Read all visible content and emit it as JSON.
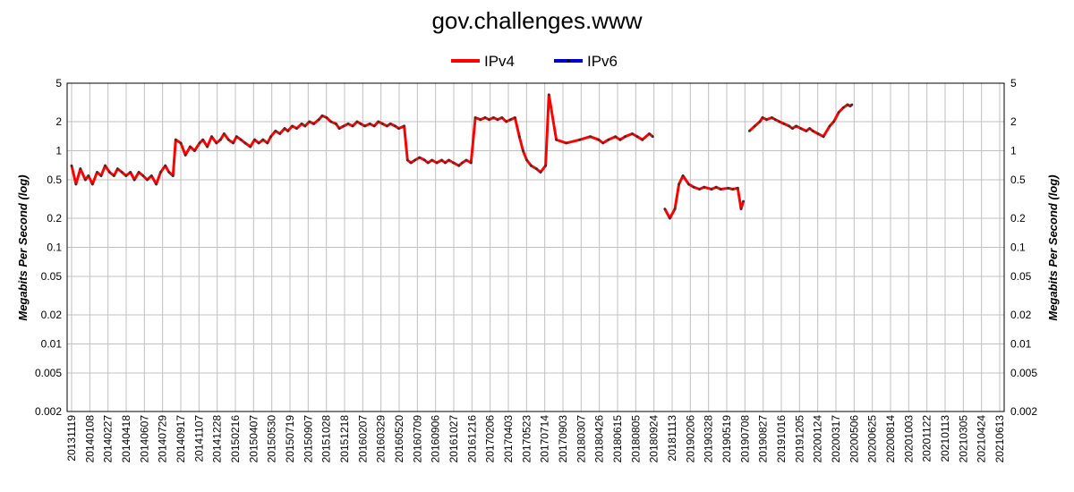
{
  "chart_data": {
    "type": "line",
    "title": "gov.challenges.www",
    "ylabel": "Megabits Per Second (log)",
    "y_scale": "log",
    "ylim": [
      0.002,
      5
    ],
    "y_ticks": [
      "5",
      "2",
      "1",
      "0.5",
      "0.2",
      "0.1",
      "0.05",
      "0.02",
      "0.01",
      "0.005",
      "0.002"
    ],
    "x_ticks": [
      "20131119",
      "20140108",
      "20140227",
      "20140418",
      "20140607",
      "20140729",
      "20140917",
      "20141107",
      "20141228",
      "20150216",
      "20150407",
      "20150530",
      "20150719",
      "20150907",
      "20151028",
      "20151218",
      "20160207",
      "20160329",
      "20160520",
      "20160709",
      "20160906",
      "20161027",
      "20161216",
      "20170206",
      "20170403",
      "20170523",
      "20170714",
      "20170903",
      "20180307",
      "20180426",
      "20180615",
      "20180805",
      "20180924",
      "20181113",
      "20190206",
      "20190328",
      "20190519",
      "20190708",
      "20190827",
      "20191016",
      "20191205",
      "20200124",
      "20200317",
      "20200506",
      "20200625",
      "20200814",
      "20201003",
      "20201122",
      "20210113",
      "20210305",
      "20210424",
      "20210613"
    ],
    "grid": true,
    "legend_position": "top-center",
    "series": [
      {
        "name": "IPv4",
        "color": "#ff0000",
        "points": [
          [
            "20131119",
            0.7
          ],
          [
            "20131202",
            0.45
          ],
          [
            "20131215",
            0.65
          ],
          [
            "20131230",
            0.5
          ],
          [
            "20140108",
            0.55
          ],
          [
            "20140120",
            0.45
          ],
          [
            "20140203",
            0.6
          ],
          [
            "20140215",
            0.55
          ],
          [
            "20140227",
            0.7
          ],
          [
            "20140312",
            0.6
          ],
          [
            "20140325",
            0.55
          ],
          [
            "20140405",
            0.65
          ],
          [
            "20140418",
            0.6
          ],
          [
            "20140430",
            0.55
          ],
          [
            "20140513",
            0.6
          ],
          [
            "20140525",
            0.5
          ],
          [
            "20140607",
            0.6
          ],
          [
            "20140620",
            0.55
          ],
          [
            "20140702",
            0.5
          ],
          [
            "20140715",
            0.55
          ],
          [
            "20140729",
            0.45
          ],
          [
            "20140811",
            0.6
          ],
          [
            "20140825",
            0.7
          ],
          [
            "20140905",
            0.6
          ],
          [
            "20140917",
            0.55
          ],
          [
            "20140925",
            1.3
          ],
          [
            "20141010",
            1.2
          ],
          [
            "20141024",
            0.9
          ],
          [
            "20141107",
            1.1
          ],
          [
            "20141120",
            1.0
          ],
          [
            "20141205",
            1.2
          ],
          [
            "20141215",
            1.3
          ],
          [
            "20141228",
            1.1
          ],
          [
            "20150110",
            1.4
          ],
          [
            "20150124",
            1.2
          ],
          [
            "20150205",
            1.3
          ],
          [
            "20150216",
            1.5
          ],
          [
            "20150301",
            1.3
          ],
          [
            "20150315",
            1.2
          ],
          [
            "20150325",
            1.4
          ],
          [
            "20150407",
            1.3
          ],
          [
            "20150420",
            1.2
          ],
          [
            "20150505",
            1.1
          ],
          [
            "20150518",
            1.3
          ],
          [
            "20150530",
            1.2
          ],
          [
            "20150612",
            1.3
          ],
          [
            "20150625",
            1.2
          ],
          [
            "20150705",
            1.4
          ],
          [
            "20150719",
            1.6
          ],
          [
            "20150801",
            1.5
          ],
          [
            "20150815",
            1.7
          ],
          [
            "20150825",
            1.6
          ],
          [
            "20150907",
            1.8
          ],
          [
            "20150920",
            1.7
          ],
          [
            "20151005",
            1.9
          ],
          [
            "20151015",
            1.8
          ],
          [
            "20151028",
            2.0
          ],
          [
            "20151110",
            1.9
          ],
          [
            "20151125",
            2.1
          ],
          [
            "20151205",
            2.3
          ],
          [
            "20151218",
            2.2
          ],
          [
            "20151231",
            2.0
          ],
          [
            "20160115",
            1.9
          ],
          [
            "20160125",
            1.7
          ],
          [
            "20160207",
            1.8
          ],
          [
            "20160220",
            1.9
          ],
          [
            "20160305",
            1.8
          ],
          [
            "20160318",
            2.0
          ],
          [
            "20160329",
            1.9
          ],
          [
            "20160410",
            1.8
          ],
          [
            "20160425",
            1.9
          ],
          [
            "20160508",
            1.8
          ],
          [
            "20160520",
            2.0
          ],
          [
            "20160602",
            1.9
          ],
          [
            "20160615",
            1.8
          ],
          [
            "20160625",
            1.9
          ],
          [
            "20160709",
            1.8
          ],
          [
            "20160720",
            1.7
          ],
          [
            "20160805",
            1.8
          ],
          [
            "20160815",
            0.8
          ],
          [
            "20160825",
            0.75
          ],
          [
            "20160906",
            0.8
          ],
          [
            "20160920",
            0.85
          ],
          [
            "20161005",
            0.8
          ],
          [
            "20161015",
            0.75
          ],
          [
            "20161027",
            0.8
          ],
          [
            "20161110",
            0.75
          ],
          [
            "20161125",
            0.8
          ],
          [
            "20161205",
            0.75
          ],
          [
            "20161216",
            0.8
          ],
          [
            "20161230",
            0.75
          ],
          [
            "20170115",
            0.7
          ],
          [
            "20170125",
            0.75
          ],
          [
            "20170206",
            0.8
          ],
          [
            "20170220",
            0.75
          ],
          [
            "20170305",
            2.2
          ],
          [
            "20170320",
            2.1
          ],
          [
            "20170403",
            2.2
          ],
          [
            "20170415",
            2.1
          ],
          [
            "20170428",
            2.2
          ],
          [
            "20170510",
            2.1
          ],
          [
            "20170523",
            2.2
          ],
          [
            "20170605",
            2.0
          ],
          [
            "20170618",
            2.1
          ],
          [
            "20170701",
            2.2
          ],
          [
            "20170714",
            1.4
          ],
          [
            "20170725",
            1.0
          ],
          [
            "20170805",
            0.8
          ],
          [
            "20170818",
            0.7
          ],
          [
            "20170903",
            0.65
          ],
          [
            "20170915",
            0.6
          ],
          [
            "20170930",
            0.7
          ],
          [
            "20171010",
            3.8
          ],
          [
            "20171101",
            1.3
          ],
          [
            "20171201",
            1.2
          ],
          [
            "20180110",
            1.3
          ],
          [
            "20180210",
            1.4
          ],
          [
            "20180307",
            1.3
          ],
          [
            "20180320",
            1.2
          ],
          [
            "20180405",
            1.3
          ],
          [
            "20180426",
            1.4
          ],
          [
            "20180510",
            1.3
          ],
          [
            "20180525",
            1.4
          ],
          [
            "20180615",
            1.5
          ],
          [
            "20180630",
            1.4
          ],
          [
            "20180715",
            1.3
          ],
          [
            "20180805",
            1.5
          ],
          [
            "20180815",
            1.4
          ],
          [
            "20180901",
            null
          ],
          [
            "20180920",
            0.25
          ],
          [
            "20181005",
            0.2
          ],
          [
            "20181020",
            0.25
          ],
          [
            "20181101",
            0.45
          ],
          [
            "20181113",
            0.55
          ],
          [
            "20181130",
            0.45
          ],
          [
            "20181215",
            0.42
          ],
          [
            "20190101",
            0.4
          ],
          [
            "20190115",
            0.42
          ],
          [
            "20190206",
            0.4
          ],
          [
            "20190220",
            0.42
          ],
          [
            "20190305",
            0.4
          ],
          [
            "20190328",
            0.41
          ],
          [
            "20190410",
            0.4
          ],
          [
            "20190425",
            0.41
          ],
          [
            "20190505",
            0.25
          ],
          [
            "20190512",
            0.3
          ],
          [
            "20190519",
            null
          ],
          [
            "20190530",
            1.6
          ],
          [
            "20190615",
            1.8
          ],
          [
            "20190630",
            2.0
          ],
          [
            "20190708",
            2.2
          ],
          [
            "20190720",
            2.1
          ],
          [
            "20190805",
            2.2
          ],
          [
            "20190815",
            2.1
          ],
          [
            "20190827",
            2.0
          ],
          [
            "20190910",
            1.9
          ],
          [
            "20190925",
            1.8
          ],
          [
            "20191005",
            1.7
          ],
          [
            "20191016",
            1.8
          ],
          [
            "20191030",
            1.7
          ],
          [
            "20191115",
            1.6
          ],
          [
            "20191125",
            1.7
          ],
          [
            "20191205",
            1.6
          ],
          [
            "20191220",
            1.5
          ],
          [
            "20200105",
            1.4
          ],
          [
            "20200124",
            1.8
          ],
          [
            "20200205",
            2.0
          ],
          [
            "20200220",
            2.5
          ],
          [
            "20200305",
            2.8
          ],
          [
            "20200317",
            3.0
          ],
          [
            "20200325",
            2.9
          ],
          [
            "20200330",
            3.0
          ]
        ]
      },
      {
        "name": "IPv6",
        "color": "#0000cc",
        "points": []
      }
    ]
  }
}
